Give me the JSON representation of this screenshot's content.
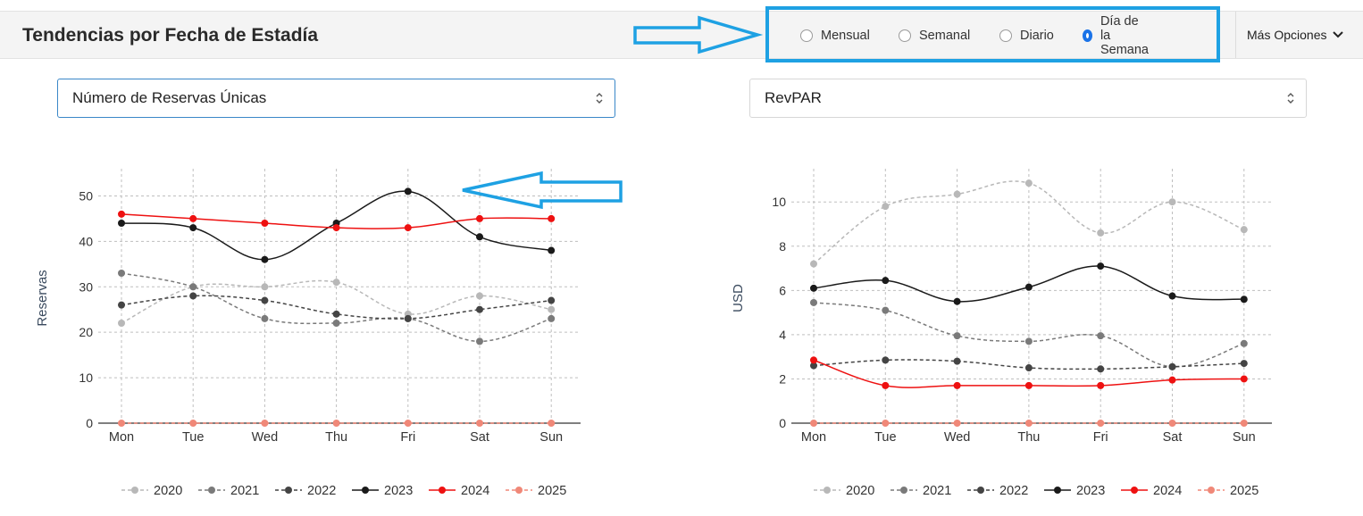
{
  "header": {
    "title": "Tendencias por Fecha de Estadía",
    "radios": [
      {
        "label": "Mensual",
        "selected": false
      },
      {
        "label": "Semanal",
        "selected": false
      },
      {
        "label": "Diario",
        "selected": false
      },
      {
        "label": "Día de la Semana",
        "selected": true
      }
    ],
    "more_options_label": "Más Opciones",
    "accent_color": "#1a73e8",
    "annotation_color": "#1ea1e3"
  },
  "selectors": {
    "left_value": "Número de Reservas Únicas",
    "right_value": "RevPAR"
  },
  "chart_data": [
    {
      "type": "line",
      "categories": [
        "Mon",
        "Tue",
        "Wed",
        "Thu",
        "Fri",
        "Sat",
        "Sun"
      ],
      "ylabel": "Reservas",
      "ylim": [
        0,
        55
      ],
      "yticks": [
        0,
        10,
        20,
        30,
        40,
        50
      ],
      "grid": true,
      "legend_position": "bottom",
      "series": [
        {
          "name": "2020",
          "color": "#b8b8b8",
          "dash": true,
          "values": [
            22,
            30,
            30,
            31,
            24,
            28,
            25
          ]
        },
        {
          "name": "2021",
          "color": "#7a7a7a",
          "dash": true,
          "values": [
            33,
            30,
            23,
            22,
            23,
            18,
            23
          ]
        },
        {
          "name": "2022",
          "color": "#444444",
          "dash": true,
          "values": [
            26,
            28,
            27,
            24,
            23,
            25,
            27
          ]
        },
        {
          "name": "2023",
          "color": "#1a1a1a",
          "dash": false,
          "values": [
            44,
            43,
            36,
            44,
            51,
            41,
            38
          ]
        },
        {
          "name": "2024",
          "color": "#ee1111",
          "dash": false,
          "values": [
            46,
            45,
            44,
            43,
            43,
            45,
            45
          ]
        },
        {
          "name": "2025",
          "color": "#f08878",
          "dash": true,
          "values": [
            0,
            0,
            0,
            0,
            0,
            0,
            0
          ]
        }
      ]
    },
    {
      "type": "line",
      "categories": [
        "Mon",
        "Tue",
        "Wed",
        "Thu",
        "Fri",
        "Sat",
        "Sun"
      ],
      "ylabel": "USD",
      "ylim": [
        0,
        11.3
      ],
      "yticks": [
        0,
        2,
        4,
        6,
        8,
        10
      ],
      "grid": true,
      "legend_position": "bottom",
      "series": [
        {
          "name": "2020",
          "color": "#b8b8b8",
          "dash": true,
          "values": [
            7.2,
            9.8,
            10.35,
            10.85,
            8.6,
            10.0,
            8.75
          ]
        },
        {
          "name": "2021",
          "color": "#7a7a7a",
          "dash": true,
          "values": [
            5.45,
            5.1,
            3.95,
            3.7,
            3.95,
            2.55,
            3.6
          ]
        },
        {
          "name": "2022",
          "color": "#444444",
          "dash": true,
          "values": [
            2.6,
            2.85,
            2.8,
            2.5,
            2.45,
            2.55,
            2.7
          ]
        },
        {
          "name": "2023",
          "color": "#1a1a1a",
          "dash": false,
          "values": [
            6.1,
            6.45,
            5.5,
            6.15,
            7.1,
            5.75,
            5.6
          ]
        },
        {
          "name": "2024",
          "color": "#ee1111",
          "dash": false,
          "values": [
            2.85,
            1.7,
            1.7,
            1.7,
            1.7,
            1.95,
            2.0
          ]
        },
        {
          "name": "2025",
          "color": "#f08878",
          "dash": true,
          "values": [
            0,
            0,
            0,
            0,
            0,
            0,
            0
          ]
        }
      ]
    }
  ]
}
